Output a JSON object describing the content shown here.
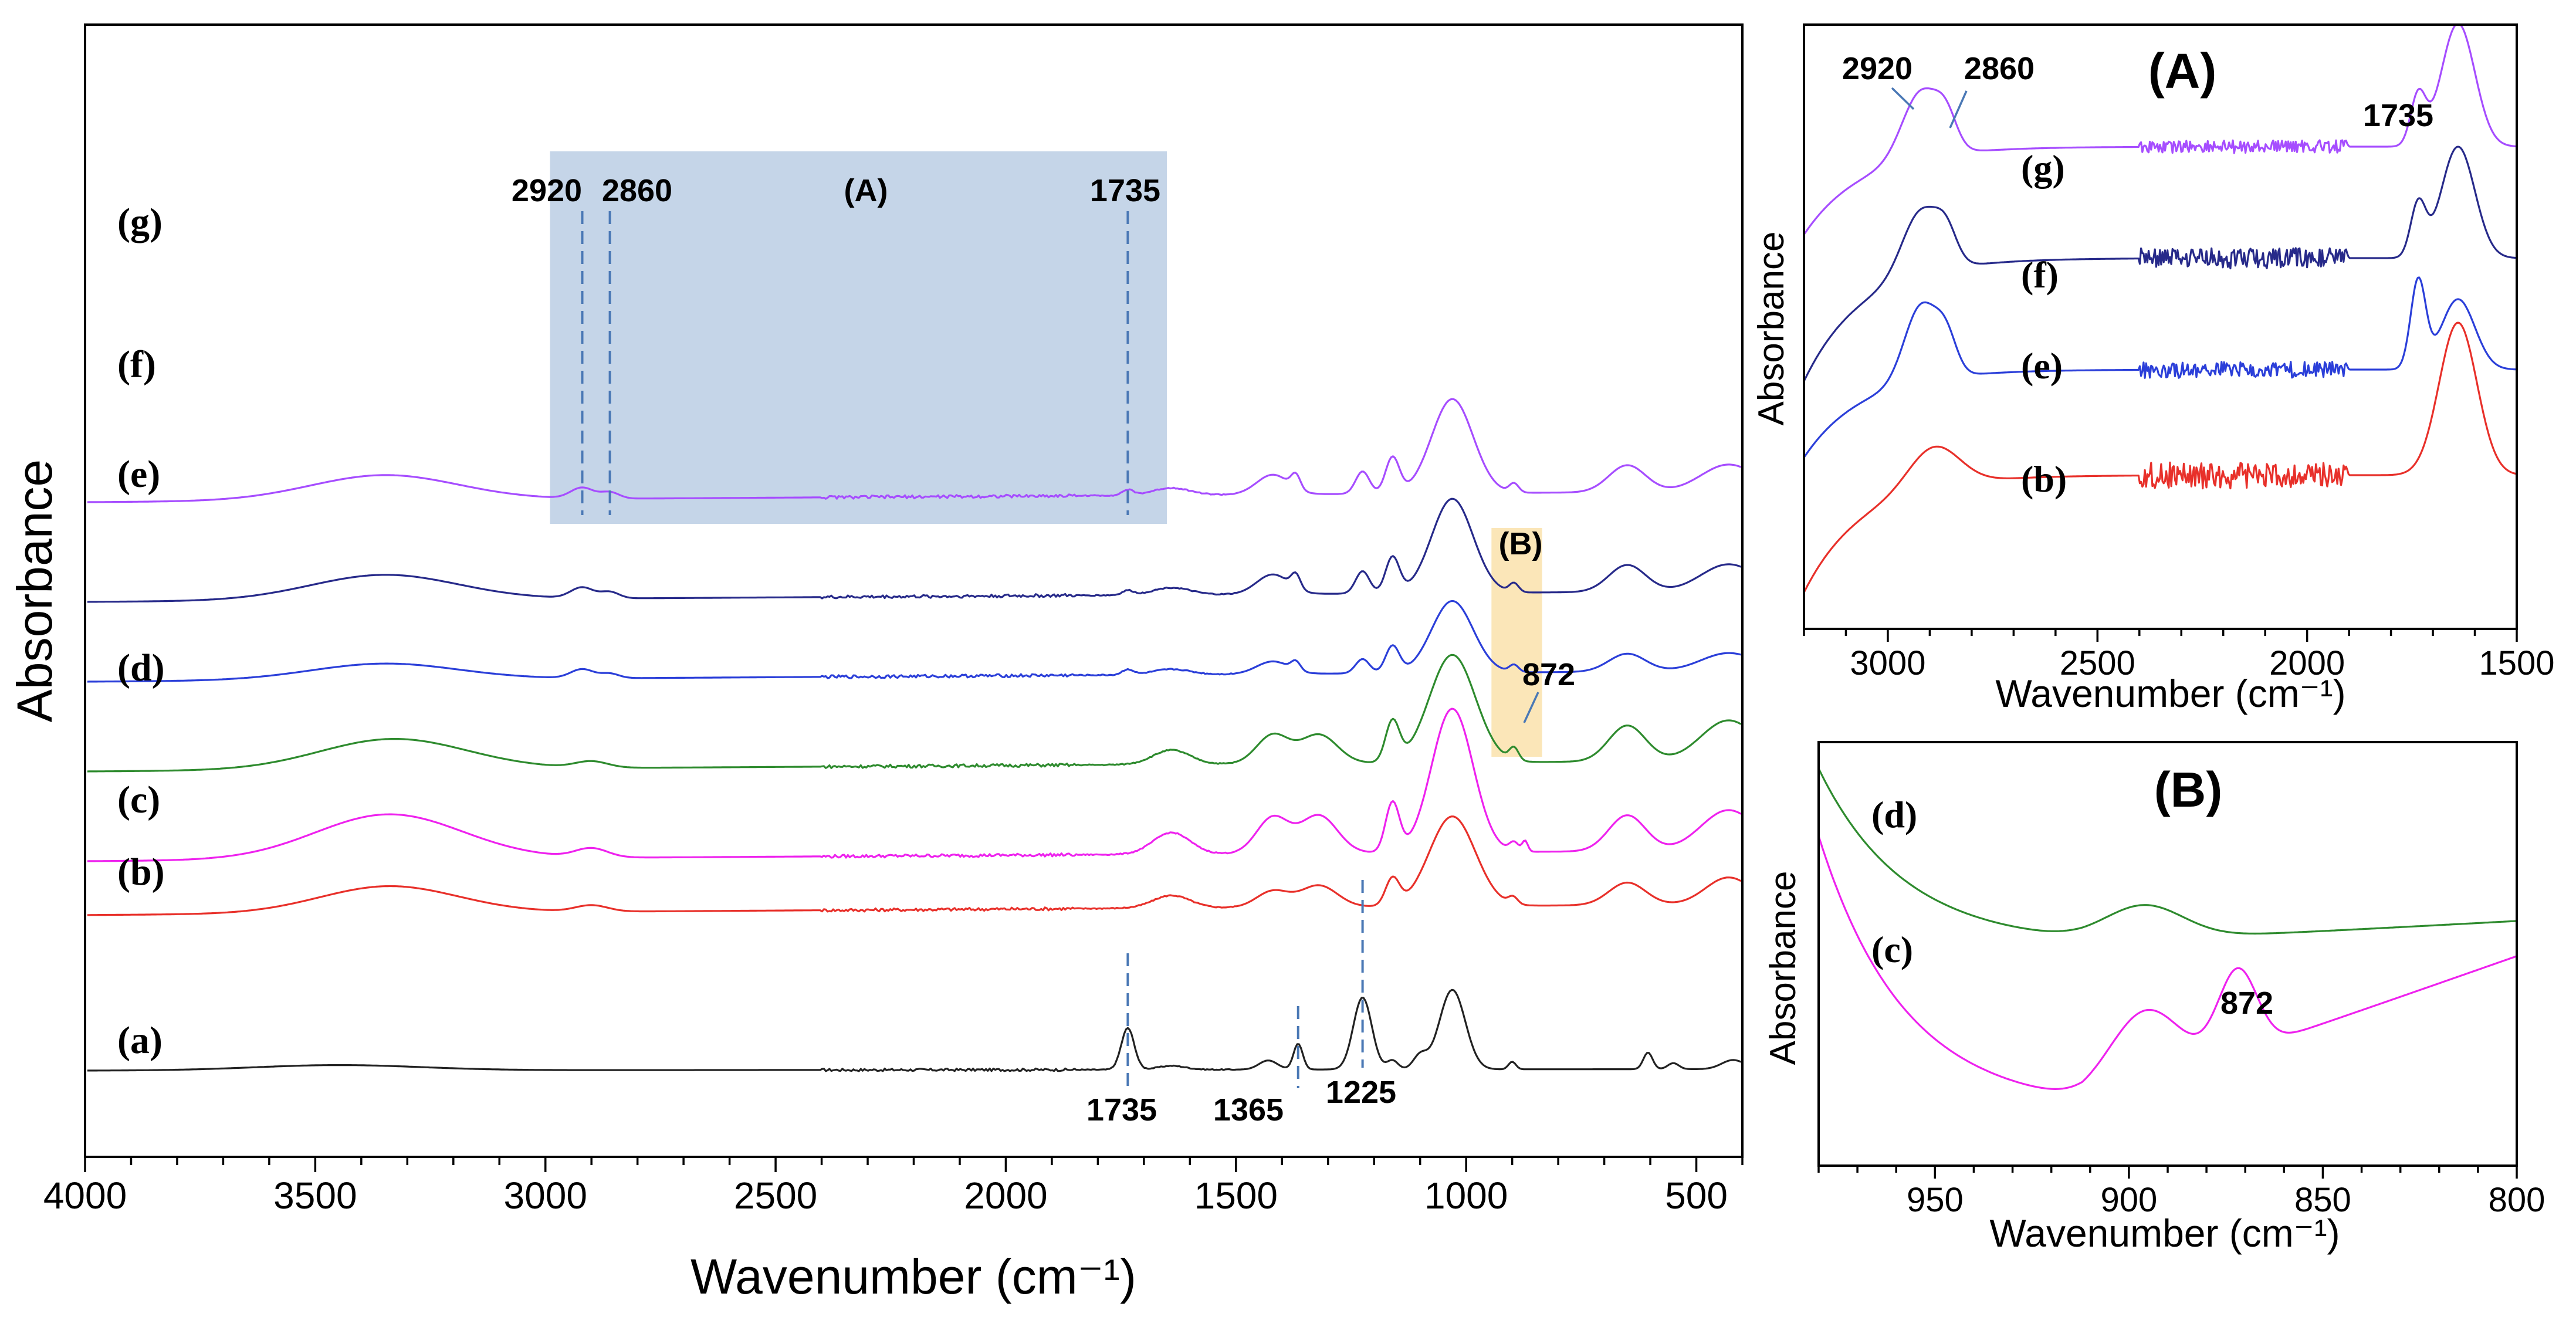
{
  "chart_data": [
    {
      "type": "line",
      "panel": "main",
      "title": "",
      "xlabel": "Wavenumber (cm⁻¹)",
      "ylabel": "Absorbance",
      "xlim": [
        4000,
        400
      ],
      "x_reversed": true,
      "x_ticks": [
        4000,
        3500,
        3000,
        2500,
        2000,
        1500,
        1000,
        500
      ],
      "y_ticks": false,
      "series": [
        {
          "name": "(a)",
          "color": "#222222",
          "offset": 0.0,
          "amp": 2.2,
          "peaks": [
            [
              3450,
              0.07,
              180
            ],
            [
              1735,
              0.55,
              14
            ],
            [
              1640,
              0.05,
              30
            ],
            [
              1430,
              0.12,
              20
            ],
            [
              1365,
              0.34,
              10
            ],
            [
              1225,
              0.95,
              20
            ],
            [
              1160,
              0.12,
              12
            ],
            [
              1100,
              0.18,
              15
            ],
            [
              1030,
              1.05,
              28
            ],
            [
              900,
              0.1,
              8
            ],
            [
              605,
              0.22,
              10
            ],
            [
              550,
              0.08,
              12
            ],
            [
              420,
              0.12,
              25
            ]
          ]
        },
        {
          "name": "(b)",
          "color": "#e8302a",
          "offset": 0.78,
          "amp": 1.0,
          "peaks": [
            [
              3340,
              0.3,
              150
            ],
            [
              2900,
              0.07,
              35
            ],
            [
              1640,
              0.14,
              40
            ],
            [
              1420,
              0.18,
              35
            ],
            [
              1320,
              0.24,
              40
            ],
            [
              1160,
              0.3,
              15
            ],
            [
              1030,
              1.0,
              50
            ],
            [
              898,
              0.08,
              10
            ],
            [
              650,
              0.25,
              40
            ],
            [
              430,
              0.3,
              50
            ]
          ]
        },
        {
          "name": "(c)",
          "color": "#ee22ee",
          "offset": 1.05,
          "amp": 1.0,
          "peaks": [
            [
              3340,
              0.5,
              160
            ],
            [
              2900,
              0.1,
              35
            ],
            [
              1640,
              0.24,
              40
            ],
            [
              1420,
              0.4,
              35
            ],
            [
              1320,
              0.42,
              40
            ],
            [
              1160,
              0.55,
              15
            ],
            [
              1030,
              1.6,
              45
            ],
            [
              896,
              0.1,
              10
            ],
            [
              872,
              0.12,
              6
            ],
            [
              650,
              0.4,
              40
            ],
            [
              430,
              0.45,
              60
            ]
          ]
        },
        {
          "name": "(d)",
          "color": "#2e8b2e",
          "offset": 1.5,
          "amp": 1.0,
          "peaks": [
            [
              3330,
              0.34,
              160
            ],
            [
              2900,
              0.07,
              35
            ],
            [
              1640,
              0.16,
              40
            ],
            [
              1420,
              0.32,
              35
            ],
            [
              1320,
              0.32,
              40
            ],
            [
              1160,
              0.45,
              15
            ],
            [
              1030,
              1.2,
              50
            ],
            [
              896,
              0.14,
              10
            ],
            [
              650,
              0.4,
              40
            ],
            [
              430,
              0.45,
              60
            ]
          ]
        },
        {
          "name": "(e)",
          "color": "#2b3fd9",
          "offset": 1.95,
          "amp": 1.0,
          "peaks": [
            [
              3350,
              0.18,
              160
            ],
            [
              2920,
              0.1,
              25
            ],
            [
              2860,
              0.05,
              20
            ],
            [
              1735,
              0.06,
              12
            ],
            [
              1640,
              0.06,
              40
            ],
            [
              1420,
              0.14,
              35
            ],
            [
              1370,
              0.1,
              10
            ],
            [
              1225,
              0.16,
              15
            ],
            [
              1160,
              0.3,
              15
            ],
            [
              1030,
              0.8,
              45
            ],
            [
              896,
              0.08,
              10
            ],
            [
              650,
              0.2,
              40
            ],
            [
              430,
              0.2,
              60
            ]
          ]
        },
        {
          "name": "(f)",
          "color": "#272a8a",
          "offset": 2.35,
          "amp": 1.0,
          "peaks": [
            [
              3350,
              0.28,
              160
            ],
            [
              2920,
              0.12,
              25
            ],
            [
              2860,
              0.07,
              20
            ],
            [
              1735,
              0.05,
              12
            ],
            [
              1640,
              0.08,
              40
            ],
            [
              1420,
              0.22,
              35
            ],
            [
              1370,
              0.16,
              10
            ],
            [
              1225,
              0.25,
              15
            ],
            [
              1160,
              0.4,
              15
            ],
            [
              1030,
              1.05,
              45
            ],
            [
              896,
              0.1,
              10
            ],
            [
              650,
              0.3,
              40
            ],
            [
              430,
              0.3,
              60
            ]
          ]
        },
        {
          "name": "(g)",
          "color": "#a64dff",
          "offset": 2.85,
          "amp": 1.0,
          "peaks": [
            [
              3350,
              0.28,
              160
            ],
            [
              2920,
              0.12,
              25
            ],
            [
              2860,
              0.07,
              20
            ],
            [
              1735,
              0.06,
              12
            ],
            [
              1640,
              0.08,
              40
            ],
            [
              1420,
              0.22,
              35
            ],
            [
              1370,
              0.16,
              10
            ],
            [
              1225,
              0.25,
              15
            ],
            [
              1160,
              0.4,
              15
            ],
            [
              1030,
              1.05,
              45
            ],
            [
              896,
              0.1,
              10
            ],
            [
              650,
              0.3,
              40
            ],
            [
              430,
              0.3,
              60
            ]
          ]
        }
      ],
      "annotations": [
        {
          "text": "2920",
          "x": 2920
        },
        {
          "text": "2860",
          "x": 2860
        },
        {
          "text": "(A)",
          "x": 2330
        },
        {
          "text": "1735",
          "x": 1735
        },
        {
          "text": "(B)",
          "x": 890
        },
        {
          "text": "872",
          "x": 872
        },
        {
          "text": "1735",
          "x": 1735
        },
        {
          "text": "1365",
          "x": 1365
        },
        {
          "text": "1225",
          "x": 1225
        }
      ],
      "highlight_regions": [
        {
          "name": "(A)",
          "x_from": 2990,
          "x_to": 1650,
          "color": "#c5d5e8"
        },
        {
          "name": "(B)",
          "x_from": 945,
          "x_to": 835,
          "color": "#fbe6b8"
        }
      ]
    },
    {
      "type": "line",
      "panel": "inset-A",
      "title": "(A)",
      "xlabel": "Wavenumber (cm⁻¹)",
      "ylabel": "Absorbance",
      "xlim": [
        3200,
        1500
      ],
      "x_reversed": true,
      "x_ticks": [
        3000,
        2500,
        2000,
        1500
      ],
      "series": [
        {
          "name": "(g)",
          "color": "#a64dff"
        },
        {
          "name": "(f)",
          "color": "#272a8a"
        },
        {
          "name": "(e)",
          "color": "#2b3fd9"
        },
        {
          "name": "(b)",
          "color": "#e8302a"
        }
      ],
      "annotations": [
        {
          "text": "2920",
          "x": 2920
        },
        {
          "text": "2860",
          "x": 2860
        },
        {
          "text": "1735",
          "x": 1735
        }
      ]
    },
    {
      "type": "line",
      "panel": "inset-B",
      "title": "(B)",
      "xlabel": "Wavenumber (cm⁻¹)",
      "ylabel": "Absorbance",
      "xlim": [
        980,
        800
      ],
      "x_reversed": true,
      "x_ticks": [
        950,
        900,
        850,
        800
      ],
      "series": [
        {
          "name": "(d)",
          "color": "#2e8b2e"
        },
        {
          "name": "(c)",
          "color": "#ee22ee"
        }
      ],
      "annotations": [
        {
          "text": "872",
          "x": 872
        }
      ]
    }
  ]
}
